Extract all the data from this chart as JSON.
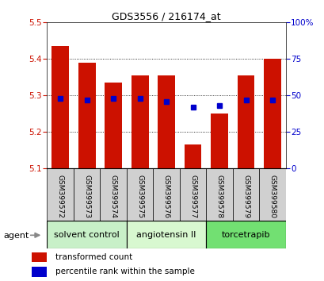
{
  "title": "GDS3556 / 216174_at",
  "samples": [
    "GSM399572",
    "GSM399573",
    "GSM399574",
    "GSM399575",
    "GSM399576",
    "GSM399577",
    "GSM399578",
    "GSM399579",
    "GSM399580"
  ],
  "red_values": [
    5.435,
    5.39,
    5.335,
    5.355,
    5.355,
    5.165,
    5.25,
    5.355,
    5.4
  ],
  "blue_values": [
    48,
    47,
    48,
    48,
    46,
    42,
    43,
    47,
    47
  ],
  "y_min": 5.1,
  "y_max": 5.5,
  "y_ticks": [
    5.1,
    5.2,
    5.3,
    5.4,
    5.5
  ],
  "y2_ticks": [
    0,
    25,
    50,
    75,
    100
  ],
  "groups": [
    {
      "label": "solvent control",
      "start": 0,
      "end": 3,
      "color": "#c8f0c8"
    },
    {
      "label": "angiotensin II",
      "start": 3,
      "end": 6,
      "color": "#d8f8d0"
    },
    {
      "label": "torcetrapib",
      "start": 6,
      "end": 9,
      "color": "#72e072"
    }
  ],
  "bar_color": "#cc1100",
  "dot_color": "#0000cc",
  "bar_bottom": 5.1,
  "bar_width": 0.65,
  "legend_red": "transformed count",
  "legend_blue": "percentile rank within the sample",
  "agent_label": "agent",
  "tick_area_color": "#d0d0d0",
  "grid_dotted_color": "#555555",
  "title_fontsize": 9,
  "tick_fontsize": 7.5,
  "sample_fontsize": 6.5,
  "group_fontsize": 8
}
